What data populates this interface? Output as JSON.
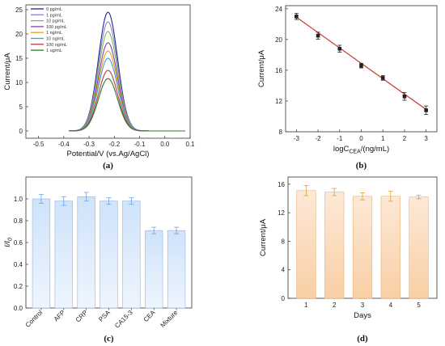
{
  "chart_data": [
    {
      "id": "a",
      "type": "line",
      "panel_label": "(a)",
      "xlabel": "Potential/V (vs.Ag/AgCl)",
      "ylabel": "Current/μA",
      "xlim": [
        -0.55,
        0.1
      ],
      "ylim": [
        -1.5,
        26
      ],
      "x_ticks": [
        -0.5,
        -0.4,
        -0.3,
        -0.2,
        -0.1,
        0.0,
        0.1
      ],
      "x_tick_labels": [
        "-0.5",
        "-0.4",
        "-0.3",
        "-0.2",
        "-0.1",
        "0.0",
        "0.1"
      ],
      "y_ticks": [
        0,
        5,
        10,
        15,
        20,
        25
      ],
      "y_tick_labels": [
        "0",
        "5",
        "10",
        "15",
        "20",
        "25"
      ],
      "legend_position": "top-left",
      "curve": {
        "center": -0.225,
        "sigma": 0.038,
        "x_start": -0.38,
        "x_end": 0.08
      },
      "series": [
        {
          "name": "0 pg/mL",
          "peak": 24.5,
          "color": "#1f2a8c"
        },
        {
          "name": "1 pg/mL",
          "peak": 22.5,
          "color": "#8a80d6"
        },
        {
          "name": "10 pg/mL",
          "peak": 20.5,
          "color": "#7cbd4a"
        },
        {
          "name": "100 pg/mL",
          "peak": 18.2,
          "color": "#8e3fb0"
        },
        {
          "name": "1 ng/mL",
          "peak": 16.5,
          "color": "#e8a024"
        },
        {
          "name": "10 ng/mL",
          "peak": 15.0,
          "color": "#3b9fd8"
        },
        {
          "name": "100 ng/mL",
          "peak": 12.5,
          "color": "#c13a2f"
        },
        {
          "name": "1 ug/mL",
          "peak": 10.8,
          "color": "#2d7a2d"
        }
      ]
    },
    {
      "id": "b",
      "type": "scatter",
      "panel_label": "(b)",
      "xlabel_main": "logC",
      "xlabel_sub": "CEA",
      "xlabel_tail": "/(ng/mL)",
      "ylabel": "Current/μA",
      "xlim": [
        -3.5,
        3.5
      ],
      "ylim": [
        8,
        24.4
      ],
      "x_ticks": [
        -3,
        -2,
        -1,
        0,
        1,
        2,
        3
      ],
      "x_tick_labels": [
        "-3",
        "-2",
        "-1",
        "0",
        "1",
        "2",
        "3"
      ],
      "y_ticks": [
        8,
        12,
        16,
        20,
        24
      ],
      "y_tick_labels": [
        "8",
        "12",
        "16",
        "20",
        "24"
      ],
      "x": [
        -3,
        -2,
        -1,
        0,
        1,
        2,
        3
      ],
      "y": [
        23.0,
        20.5,
        18.8,
        16.6,
        15.0,
        12.6,
        10.8
      ],
      "errors": [
        0.4,
        0.45,
        0.45,
        0.3,
        0.3,
        0.5,
        0.55
      ],
      "fit": {
        "slope": -2.0,
        "intercept": 16.9
      },
      "fit_color": "#c0392b",
      "marker_color": "#222222"
    },
    {
      "id": "c",
      "type": "bar",
      "panel_label": "(c)",
      "ylabel_main": "I/I",
      "ylabel_sub": "0",
      "categories": [
        "Control",
        "AFP",
        "CRP",
        "PSA",
        "CA15-3",
        "CEA",
        "Mixture"
      ],
      "values": [
        1.0,
        0.98,
        1.02,
        0.98,
        0.98,
        0.71,
        0.71
      ],
      "errors": [
        0.04,
        0.04,
        0.04,
        0.03,
        0.03,
        0.03,
        0.03
      ],
      "ylim": [
        0,
        1.2
      ],
      "y_ticks": [
        0.0,
        0.2,
        0.4,
        0.6,
        0.8,
        1.0
      ],
      "y_tick_labels": [
        "0.0",
        "0.2",
        "0.4",
        "0.6",
        "0.8",
        "1.0"
      ],
      "bar_color": "#dbeafb",
      "edge_color": "#8fb8e8"
    },
    {
      "id": "d",
      "type": "bar",
      "panel_label": "(d)",
      "xlabel": "Days",
      "ylabel": "Current/μA",
      "categories": [
        "1",
        "2",
        "3",
        "4",
        "5"
      ],
      "values": [
        15.1,
        14.9,
        14.3,
        14.3,
        14.2
      ],
      "errors": [
        0.7,
        0.5,
        0.5,
        0.7,
        0.25
      ],
      "ylim": [
        0,
        17
      ],
      "y_ticks": [
        0,
        4,
        8,
        12,
        16
      ],
      "y_tick_labels": [
        "0",
        "4",
        "8",
        "12",
        "16"
      ],
      "bar_color": "#fbe3cc",
      "edge_color": "#e6b37a",
      "error_color": "#e0a030"
    }
  ]
}
